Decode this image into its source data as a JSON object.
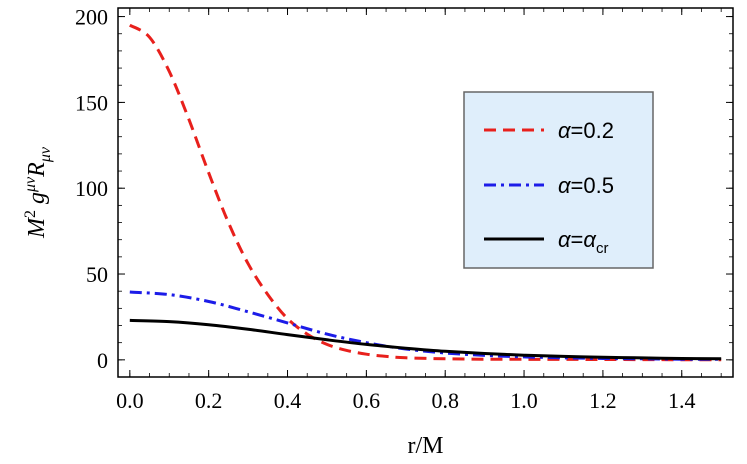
{
  "chart_data": {
    "type": "line",
    "title": "",
    "xlabel": "r/M",
    "ylabel_parts": {
      "base": "M",
      "sup1": "2",
      "mid": " g",
      "sup2": "μν",
      "mid2": "R",
      "sub": "μν"
    },
    "xlim": [
      -0.03,
      1.53
    ],
    "ylim": [
      -10,
      205
    ],
    "xticks": [
      0.0,
      0.2,
      0.4,
      0.6,
      0.8,
      1.0,
      1.2,
      1.4
    ],
    "xtick_labels": [
      "0.0",
      "0.2",
      "0.4",
      "0.6",
      "0.8",
      "1.0",
      "1.2",
      "1.4"
    ],
    "yticks": [
      0,
      50,
      100,
      150,
      200
    ],
    "ytick_labels": [
      "0",
      "50",
      "100",
      "150",
      "200"
    ],
    "grid": false,
    "legend_position": "right",
    "legend_bg": "#dfeefb",
    "series": [
      {
        "name_text": "α=0.2",
        "color": "#e8201c",
        "dash": "dashed",
        "x": [
          0.0,
          0.05,
          0.1,
          0.15,
          0.2,
          0.25,
          0.3,
          0.35,
          0.4,
          0.45,
          0.5,
          0.55,
          0.6,
          0.65,
          0.7,
          0.8,
          0.9,
          1.0,
          1.1,
          1.2,
          1.3,
          1.4,
          1.5
        ],
        "y": [
          195,
          188,
          168,
          140,
          109,
          80,
          56,
          38,
          24,
          15,
          9,
          5.5,
          3.3,
          2.0,
          1.2,
          0.6,
          0.4,
          0.3,
          0.25,
          0.2,
          0.15,
          0.1,
          0.1
        ]
      },
      {
        "name_text": "α=0.5",
        "color": "#1c1ce8",
        "dash": "dashdot",
        "x": [
          0.0,
          0.1,
          0.2,
          0.3,
          0.4,
          0.5,
          0.6,
          0.7,
          0.8,
          0.9,
          1.0,
          1.1,
          1.2,
          1.3,
          1.4,
          1.5
        ],
        "y": [
          39.5,
          38,
          34,
          28,
          21.5,
          15,
          10,
          6.3,
          4.0,
          2.6,
          1.7,
          1.2,
          0.8,
          0.6,
          0.4,
          0.3
        ]
      },
      {
        "name_text": "α=α",
        "name_sub": "cr",
        "color": "#000000",
        "dash": "solid",
        "x": [
          0.0,
          0.1,
          0.2,
          0.3,
          0.4,
          0.5,
          0.6,
          0.7,
          0.8,
          0.9,
          1.0,
          1.1,
          1.2,
          1.3,
          1.4,
          1.5
        ],
        "y": [
          23.0,
          22.3,
          20.5,
          17.8,
          14.7,
          11.7,
          9.0,
          6.8,
          5.0,
          3.7,
          2.7,
          2.0,
          1.5,
          1.1,
          0.8,
          0.6
        ]
      }
    ]
  }
}
